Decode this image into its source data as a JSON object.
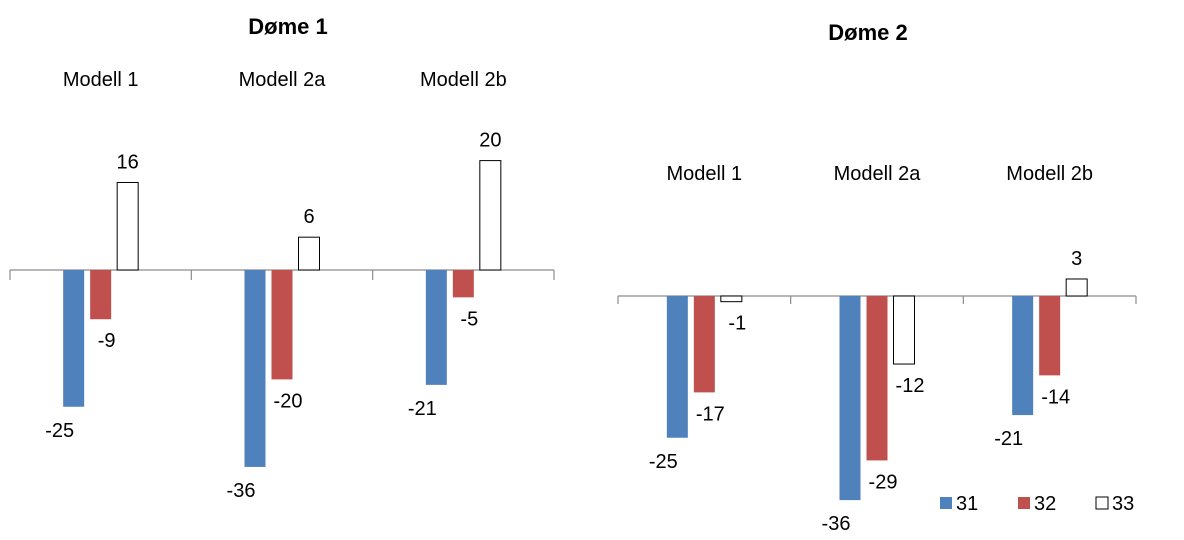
{
  "chart_data": [
    {
      "type": "bar",
      "title": "Døme 1",
      "categories": [
        "Modell 1",
        "Modell 2a",
        "Modell 2b"
      ],
      "series": [
        {
          "name": "31",
          "color": "#4f81bd",
          "values": [
            -25,
            -36,
            -21
          ],
          "labels": [
            "-25",
            "-36",
            "-21"
          ]
        },
        {
          "name": "32",
          "color": "#c0504d",
          "values": [
            -9,
            -20,
            -5
          ],
          "labels": [
            "-9",
            "-20",
            "-5"
          ]
        },
        {
          "name": "33",
          "color": "#ffffff",
          "values": [
            16,
            6,
            20
          ],
          "labels": [
            "16",
            "6",
            "20"
          ]
        }
      ],
      "grid": false,
      "legend": "none"
    },
    {
      "type": "bar",
      "title": "Døme 2",
      "categories": [
        "Modell 1",
        "Modell 2a",
        "Modell 2b"
      ],
      "series": [
        {
          "name": "31",
          "color": "#4f81bd",
          "values": [
            -25,
            -36,
            -21
          ],
          "labels": [
            "-25",
            "-36",
            "-21"
          ]
        },
        {
          "name": "32",
          "color": "#c0504d",
          "values": [
            -17,
            -29,
            -14
          ],
          "labels": [
            "-17",
            "-29",
            "-14"
          ]
        },
        {
          "name": "33",
          "color": "#ffffff",
          "values": [
            -1,
            -12,
            3
          ],
          "labels": [
            "-1",
            "-12",
            "3"
          ]
        }
      ],
      "grid": false,
      "legend": "bottom-right"
    }
  ]
}
